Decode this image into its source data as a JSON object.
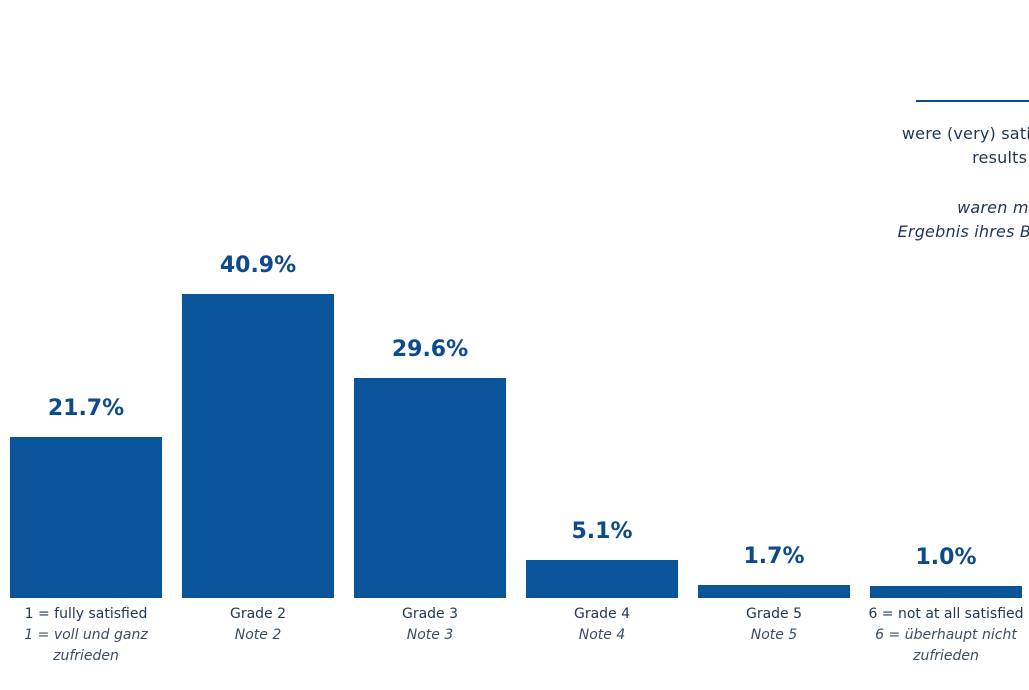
{
  "chart_data": {
    "type": "bar",
    "categories": [
      "1 = fully satisfied",
      "Grade 2",
      "Grade 3",
      "Grade 4",
      "Grade 5",
      "6 = not at all satisfied"
    ],
    "categories_de": [
      "1 = voll und ganz zufrieden",
      "Note 2",
      "Note 3",
      "Note 4",
      "Note 5",
      "6 = überhaupt nicht zufrieden"
    ],
    "values": [
      21.7,
      40.9,
      29.6,
      5.1,
      1.7,
      1.0
    ],
    "value_labels": [
      "21.7%",
      "40.9%",
      "29.6%",
      "5.1%",
      "1.7%",
      "1.0%"
    ],
    "title": "",
    "xlabel": "",
    "ylabel": "",
    "ylim": [
      0,
      40.9
    ],
    "grid": false
  },
  "callout": {
    "english": "were (very) satisfie\nresults of t",
    "german": "waren mit ih\nErgebnis ihres Besu"
  },
  "colors": {
    "bar": "#0b559a",
    "accent": "#0b4a8b",
    "text": "#1f3555"
  }
}
